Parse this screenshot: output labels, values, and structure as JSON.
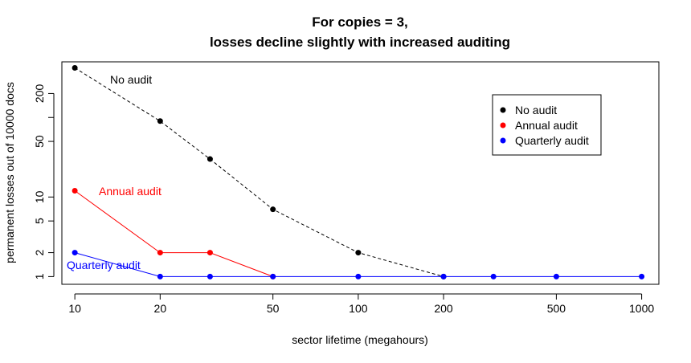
{
  "chart_data": {
    "type": "line",
    "title": [
      "For copies = 3,",
      "losses decline slightly with increased auditing"
    ],
    "xlabel": "sector lifetime (megahours)",
    "ylabel": "permanent losses out of 10000 docs",
    "x_scale": "log",
    "y_scale": "log",
    "xlim": [
      9,
      1150
    ],
    "ylim": [
      0.8,
      500
    ],
    "x_ticks": [
      10,
      20,
      50,
      100,
      200,
      500,
      1000
    ],
    "y_ticks": [
      1,
      2,
      5,
      10,
      50,
      200
    ],
    "grid": false,
    "legend_position": "top-right",
    "series": [
      {
        "name": "No audit",
        "color": "#000000",
        "line_style": "dashed",
        "x": [
          10,
          20,
          30,
          50,
          100,
          200
        ],
        "y": [
          420,
          90,
          30,
          7,
          2,
          1
        ]
      },
      {
        "name": "Annual audit",
        "color": "#ff0000",
        "line_style": "solid",
        "x": [
          10,
          20,
          30,
          50
        ],
        "y": [
          12,
          2,
          2,
          1
        ]
      },
      {
        "name": "Quarterly audit",
        "color": "#0000ff",
        "line_style": "solid",
        "x": [
          10,
          20,
          30,
          50,
          100,
          200,
          300,
          500,
          1000
        ],
        "y": [
          2,
          1,
          1,
          1,
          1,
          1,
          1,
          1,
          1
        ]
      }
    ],
    "annotations": [
      {
        "text": "No audit",
        "color": "#000000"
      },
      {
        "text": "Annual audit",
        "color": "#ff0000"
      },
      {
        "text": "Quarterly audit",
        "color": "#0000ff"
      }
    ]
  }
}
